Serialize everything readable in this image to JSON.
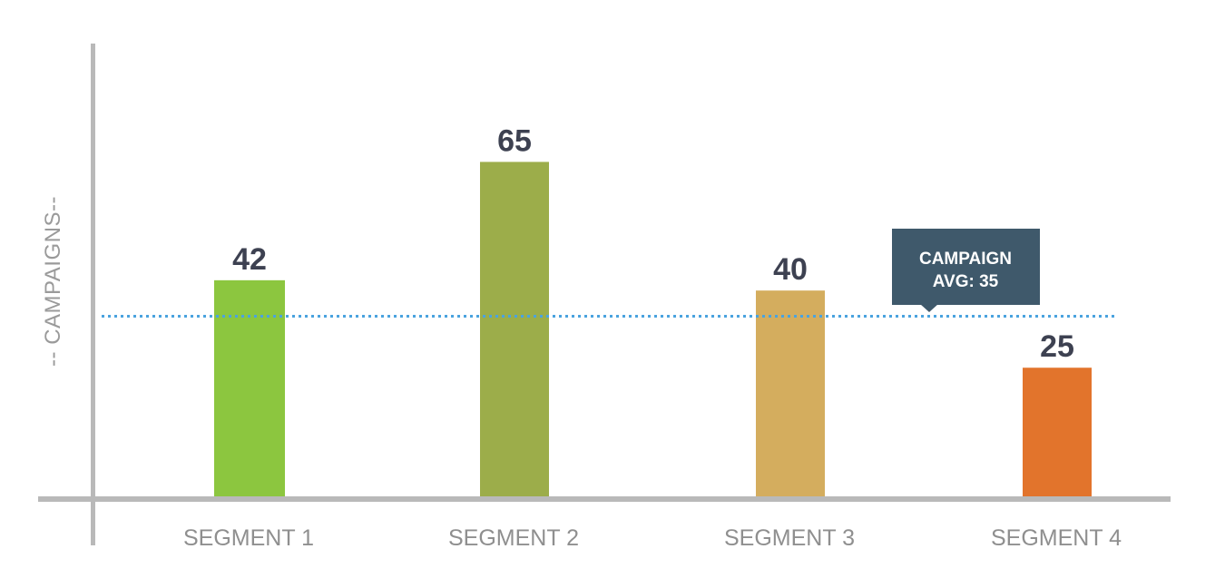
{
  "chart_data": {
    "type": "bar",
    "categories": [
      "SEGMENT 1",
      "SEGMENT 2",
      "SEGMENT 3",
      "SEGMENT 4"
    ],
    "values": [
      42,
      65,
      40,
      25
    ],
    "bar_colors": [
      "#8cc63f",
      "#9cad4a",
      "#d4ad5e",
      "#e2742c"
    ],
    "ylabel": "-- CAMPAIGNS--",
    "xlabel": "",
    "ylim": [
      0,
      88
    ],
    "grid": false,
    "data_labels": true,
    "reference_line": {
      "value": 35,
      "style": "dotted",
      "color": "#4aa3df",
      "label_line1": "CAMPAIGN",
      "label_line2": "AVG: 35"
    }
  },
  "colors": {
    "axis": "#b9b9b9",
    "value_label": "#3d4151",
    "category_label": "#8f8f8f",
    "callout_background": "#3f596b"
  }
}
